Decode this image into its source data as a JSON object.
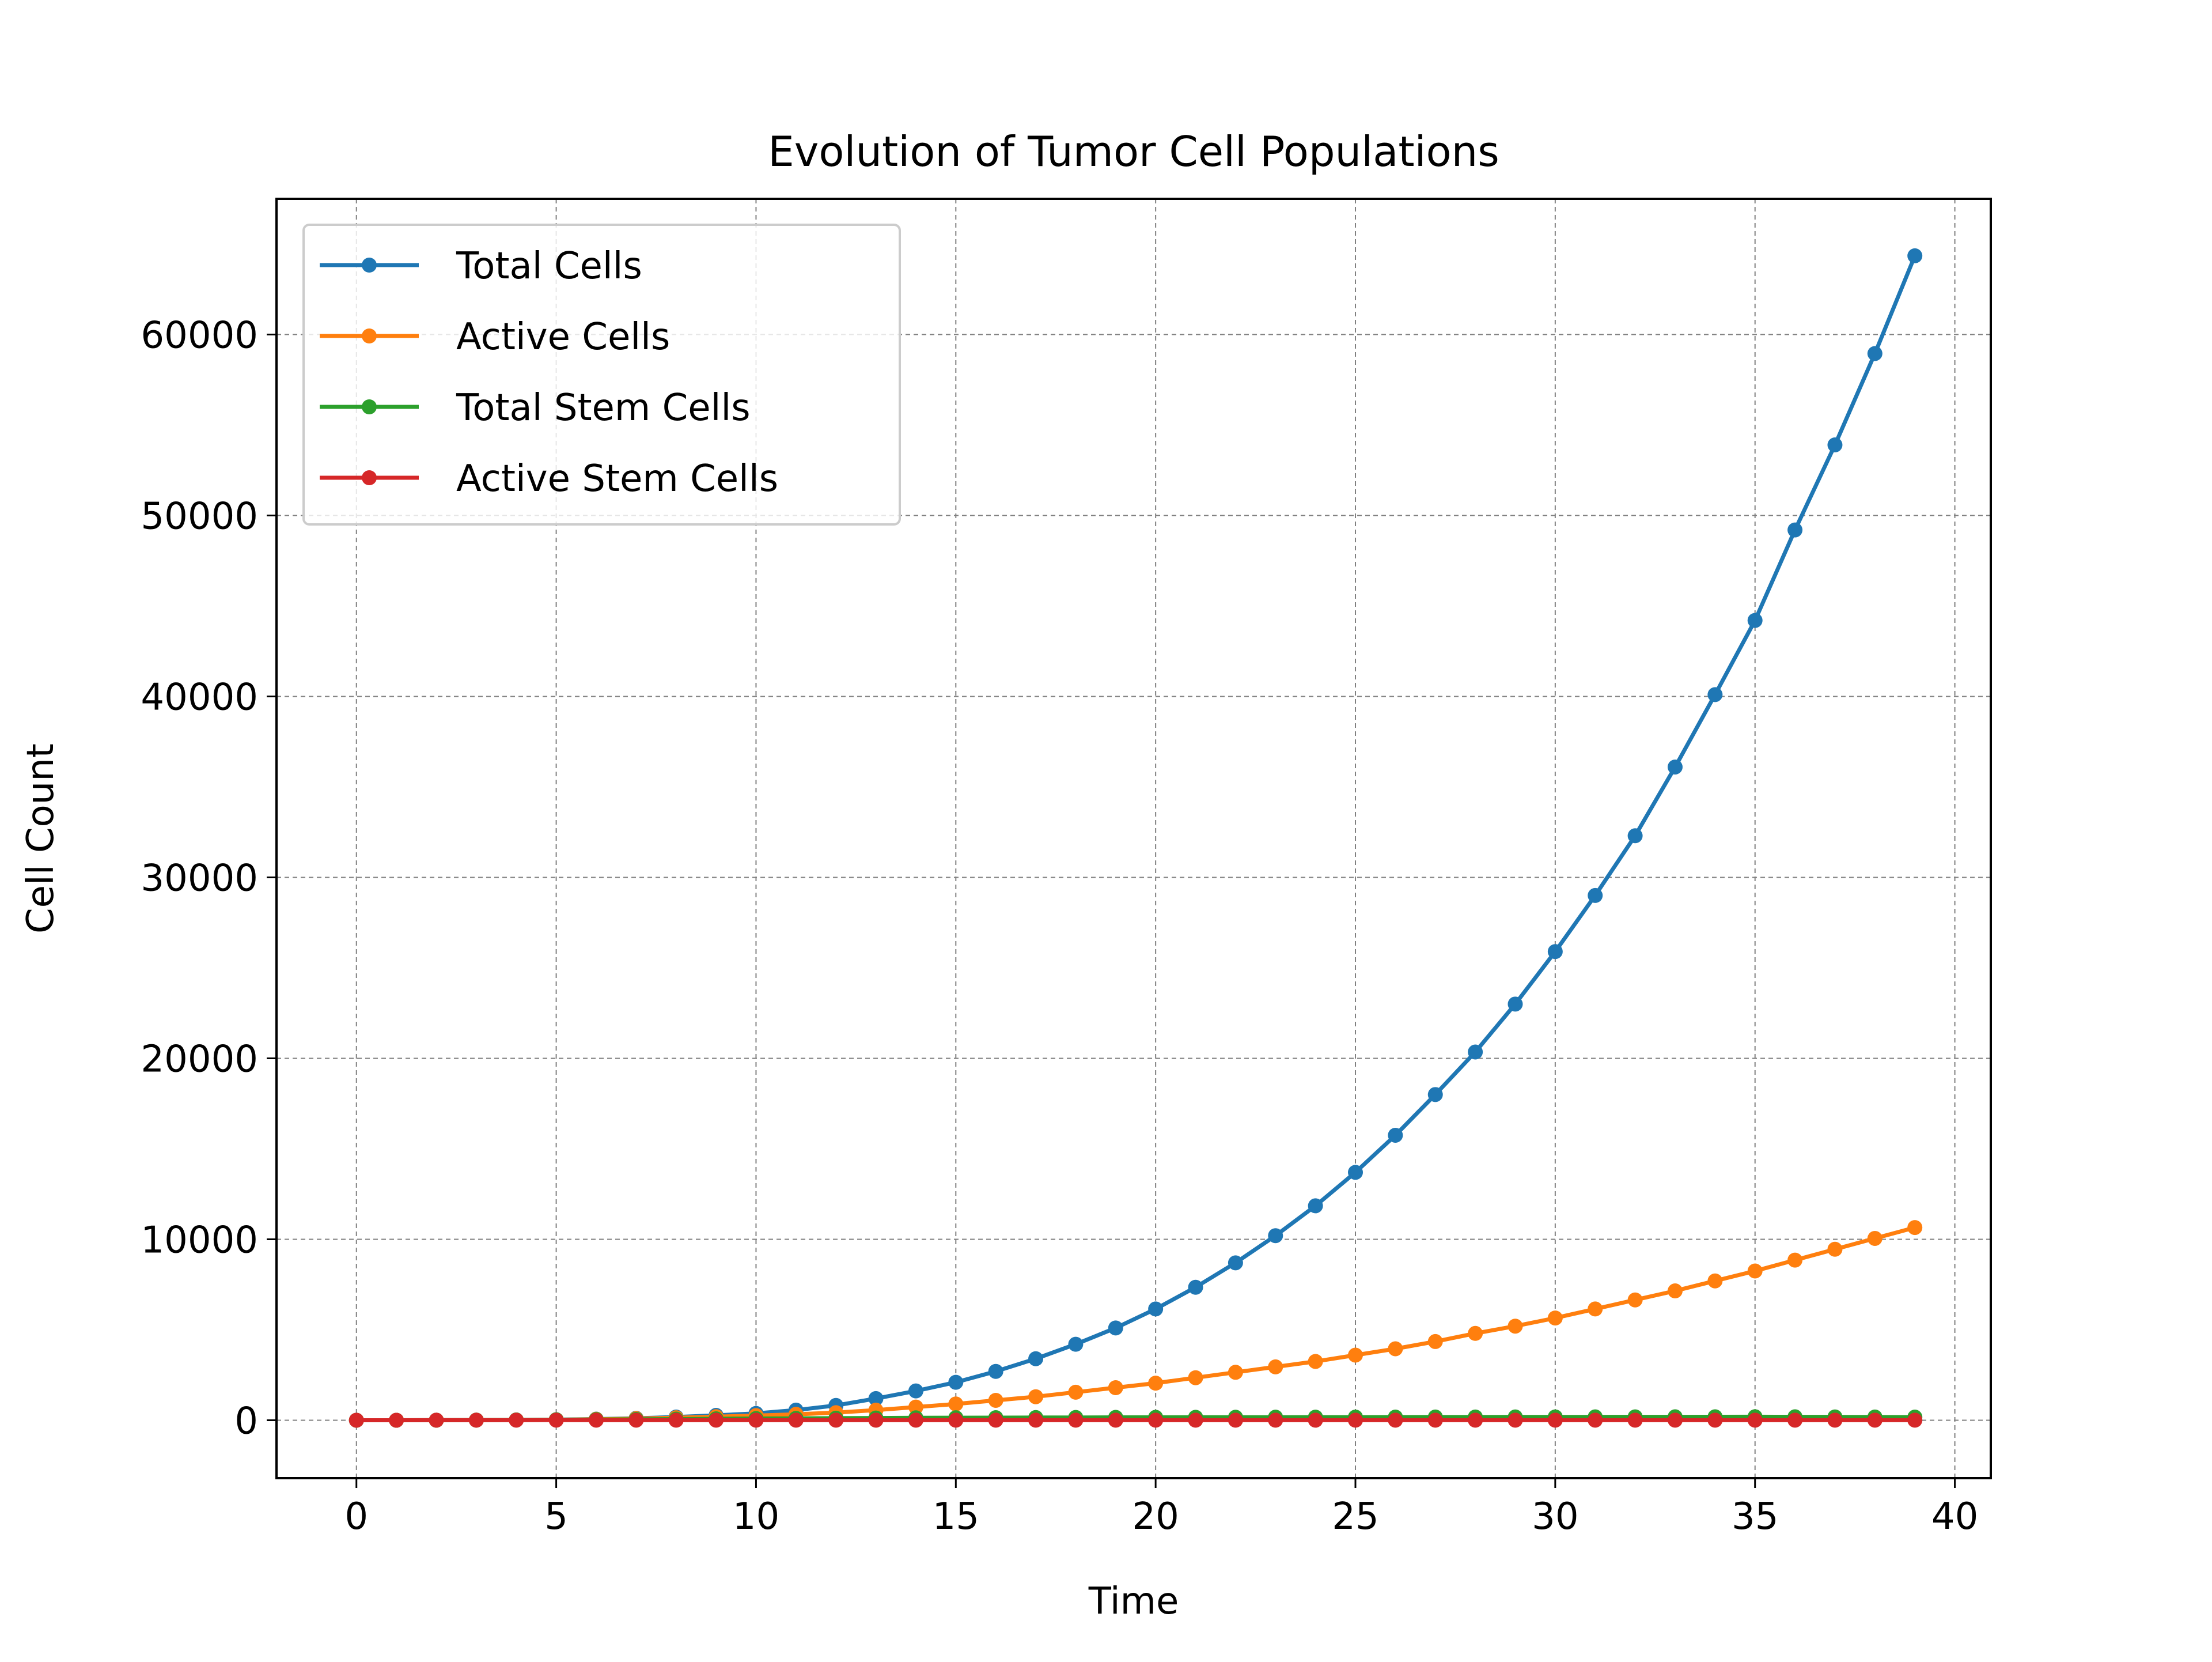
{
  "chart_data": {
    "type": "line",
    "title": "Evolution of Tumor Cell Populations",
    "xlabel": "Time",
    "ylabel": "Cell Count",
    "xlim": [
      -2,
      40.9
    ],
    "ylim": [
      -3200,
      67500
    ],
    "x_ticks": [
      0,
      5,
      10,
      15,
      20,
      25,
      30,
      35,
      40
    ],
    "y_ticks": [
      0,
      10000,
      20000,
      30000,
      40000,
      50000,
      60000
    ],
    "grid": true,
    "legend_position": "top-left",
    "x": [
      0,
      1,
      2,
      3,
      4,
      5,
      6,
      7,
      8,
      9,
      10,
      11,
      12,
      13,
      14,
      15,
      16,
      17,
      18,
      19,
      20,
      21,
      22,
      23,
      24,
      25,
      26,
      27,
      28,
      29,
      30,
      31,
      32,
      33,
      34,
      35,
      36,
      37,
      38,
      39
    ],
    "series": [
      {
        "name": "Total Cells",
        "color": "#1f77b4",
        "values": [
          1,
          2,
          4,
          8,
          16,
          32,
          64,
          110,
          180,
          270,
          380,
          560,
          820,
          1200,
          1620,
          2100,
          2700,
          3400,
          4200,
          5100,
          6150,
          7350,
          8700,
          10200,
          11850,
          13700,
          15750,
          18000,
          20350,
          23000,
          25900,
          29000,
          32300,
          36100,
          40100,
          44200,
          49200,
          53900,
          58950,
          64350
        ]
      },
      {
        "name": "Active Cells",
        "color": "#ff7f0e",
        "values": [
          1,
          2,
          4,
          8,
          16,
          30,
          55,
          90,
          140,
          200,
          260,
          330,
          420,
          560,
          730,
          900,
          1100,
          1300,
          1550,
          1800,
          2050,
          2350,
          2650,
          2950,
          3250,
          3600,
          3950,
          4350,
          4800,
          5200,
          5650,
          6150,
          6650,
          7150,
          7700,
          8250,
          8850,
          9450,
          10050,
          10650
        ]
      },
      {
        "name": "Total Stem Cells",
        "color": "#2ca02c",
        "values": [
          1,
          2,
          4,
          8,
          15,
          25,
          35,
          50,
          65,
          80,
          95,
          105,
          115,
          125,
          135,
          140,
          145,
          150,
          155,
          160,
          162,
          165,
          167,
          170,
          172,
          174,
          176,
          178,
          180,
          182,
          184,
          186,
          188,
          190,
          192,
          194,
          190,
          185,
          180,
          175
        ]
      },
      {
        "name": "Active Stem Cells",
        "color": "#d62728",
        "values": [
          1,
          2,
          3,
          4,
          5,
          6,
          5,
          5,
          4,
          4,
          4,
          4,
          4,
          4,
          4,
          4,
          4,
          4,
          4,
          4,
          4,
          4,
          4,
          4,
          4,
          4,
          4,
          4,
          4,
          4,
          4,
          4,
          4,
          4,
          4,
          4,
          4,
          4,
          4,
          4
        ]
      }
    ]
  }
}
